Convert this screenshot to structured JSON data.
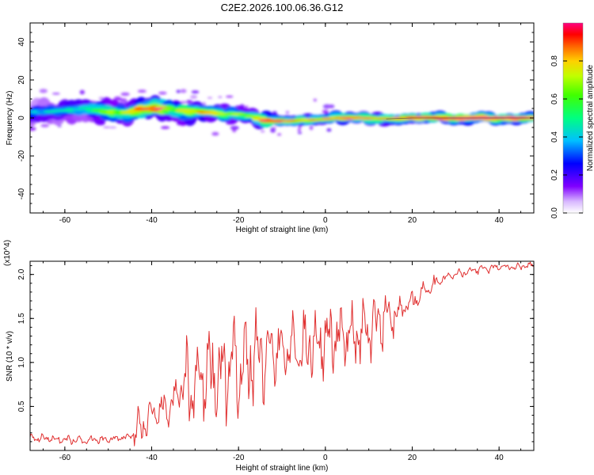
{
  "chart_data": [
    {
      "type": "heatmap",
      "title": "C2E2.2026.100.06.36.G12",
      "xlabel": "Height of straight line (km)",
      "ylabel": "Frequency (Hz)",
      "xlim": [
        -68,
        48
      ],
      "ylim": [
        -50,
        50
      ],
      "xticks": [
        -60,
        -40,
        -20,
        0,
        20,
        40
      ],
      "yticks": [
        -40,
        -20,
        0,
        20,
        40
      ],
      "colorbar": {
        "label": "Normalized spectral amplitude",
        "range": [
          0,
          1
        ],
        "ticks": [
          "0.0",
          "0.2",
          "0.4",
          "0.6",
          "0.8"
        ]
      },
      "ridge": [
        {
          "x": -68,
          "y": 3.0,
          "amp": 0.3
        },
        {
          "x": -60,
          "y": 4.0,
          "amp": 0.38
        },
        {
          "x": -55,
          "y": 5.0,
          "amp": 0.42
        },
        {
          "x": -50,
          "y": 3.0,
          "amp": 0.55
        },
        {
          "x": -45,
          "y": 3.0,
          "amp": 0.62
        },
        {
          "x": -42,
          "y": 5.0,
          "amp": 0.78
        },
        {
          "x": -38,
          "y": 5.0,
          "amp": 0.8
        },
        {
          "x": -34,
          "y": 4.0,
          "amp": 0.55
        },
        {
          "x": -28,
          "y": 3.0,
          "amp": 0.72
        },
        {
          "x": -24,
          "y": 2.0,
          "amp": 0.6
        },
        {
          "x": -20,
          "y": 2.0,
          "amp": 0.55
        },
        {
          "x": -16,
          "y": 0.5,
          "amp": 0.58
        },
        {
          "x": -14,
          "y": -1.5,
          "amp": 0.85
        },
        {
          "x": -8,
          "y": -1.5,
          "amp": 0.8
        },
        {
          "x": -2,
          "y": -1.0,
          "amp": 0.68
        },
        {
          "x": 2,
          "y": 0.0,
          "amp": 0.78
        },
        {
          "x": 8,
          "y": 0.0,
          "amp": 0.8
        },
        {
          "x": 14,
          "y": -0.5,
          "amp": 0.75
        },
        {
          "x": 20,
          "y": 0.0,
          "amp": 0.82
        },
        {
          "x": 28,
          "y": 0.0,
          "amp": 0.92
        },
        {
          "x": 40,
          "y": 0.0,
          "amp": 0.95
        },
        {
          "x": 48,
          "y": 0.0,
          "amp": 0.95
        }
      ]
    },
    {
      "type": "line",
      "xlabel": "Height of straight line (km)",
      "ylabel": "SNR (10 * v/v)",
      "multiplier": "(x10^4)",
      "xlim": [
        -68,
        48
      ],
      "ylim": [
        0,
        2.15
      ],
      "xticks": [
        -60,
        -40,
        -20,
        0,
        20,
        40
      ],
      "yticks": [
        "0.5",
        "1.0",
        "1.5",
        "2.0"
      ],
      "color": "#e03030",
      "trend": [
        {
          "x": -68,
          "y": 0.15
        },
        {
          "x": -60,
          "y": 0.12
        },
        {
          "x": -50,
          "y": 0.12
        },
        {
          "x": -45,
          "y": 0.16
        },
        {
          "x": -42,
          "y": 0.3
        },
        {
          "x": -40,
          "y": 0.36
        },
        {
          "x": -36,
          "y": 0.5
        },
        {
          "x": -32,
          "y": 0.75
        },
        {
          "x": -28,
          "y": 0.8
        },
        {
          "x": -24,
          "y": 0.85
        },
        {
          "x": -20,
          "y": 0.95
        },
        {
          "x": -16,
          "y": 1.05
        },
        {
          "x": -12,
          "y": 1.1
        },
        {
          "x": -8,
          "y": 1.15
        },
        {
          "x": -4,
          "y": 1.2
        },
        {
          "x": 0,
          "y": 1.25
        },
        {
          "x": 4,
          "y": 1.28
        },
        {
          "x": 8,
          "y": 1.3
        },
        {
          "x": 12,
          "y": 1.4
        },
        {
          "x": 16,
          "y": 1.55
        },
        {
          "x": 20,
          "y": 1.7
        },
        {
          "x": 24,
          "y": 1.85
        },
        {
          "x": 28,
          "y": 1.97
        },
        {
          "x": 32,
          "y": 2.02
        },
        {
          "x": 36,
          "y": 2.06
        },
        {
          "x": 40,
          "y": 2.08
        },
        {
          "x": 44,
          "y": 2.09
        },
        {
          "x": 48,
          "y": 2.1
        }
      ]
    }
  ]
}
